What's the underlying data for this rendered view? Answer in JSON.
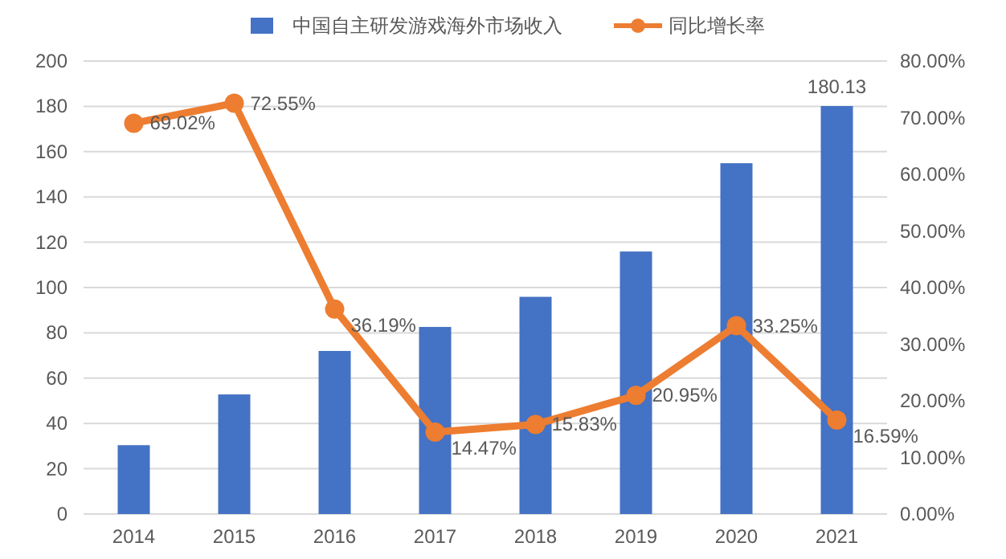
{
  "chart_data": {
    "type": "bar",
    "categories": [
      "2014",
      "2015",
      "2016",
      "2017",
      "2018",
      "2019",
      "2020",
      "2021"
    ],
    "series": [
      {
        "name": "中国自主研发游戏海外市场收入",
        "color": "#4472c4",
        "values": [
          30.4,
          52.8,
          72.0,
          82.6,
          95.9,
          115.9,
          154.9,
          180.13
        ],
        "value_labels": [
          null,
          null,
          null,
          null,
          null,
          null,
          null,
          "180.13"
        ]
      },
      {
        "name": "同比增长率",
        "type": "line",
        "axis": "y2",
        "color": "#ed7d31",
        "marker": "circle",
        "values": [
          69.02,
          72.55,
          36.19,
          14.47,
          15.83,
          20.95,
          33.25,
          16.59
        ],
        "value_labels": [
          "69.02%",
          "72.55%",
          "36.19%",
          "14.47%",
          "15.83%",
          "20.95%",
          "33.25%",
          "16.59%"
        ]
      }
    ],
    "ylim": [
      0,
      200
    ],
    "yticks": [
      0,
      20,
      40,
      60,
      80,
      100,
      120,
      140,
      160,
      180,
      200
    ],
    "y2lim": [
      0,
      80
    ],
    "y2ticks": [
      {
        "value": 0,
        "label": "0.00%"
      },
      {
        "value": 10,
        "label": "10.00%"
      },
      {
        "value": 20,
        "label": "20.00%"
      },
      {
        "value": 30,
        "label": "30.00%"
      },
      {
        "value": 40,
        "label": "40.00%"
      },
      {
        "value": 50,
        "label": "50.00%"
      },
      {
        "value": 60,
        "label": "60.00%"
      },
      {
        "value": 70,
        "label": "70.00%"
      },
      {
        "value": 80,
        "label": "80.00%"
      }
    ],
    "grid": "y",
    "legend": "top"
  }
}
